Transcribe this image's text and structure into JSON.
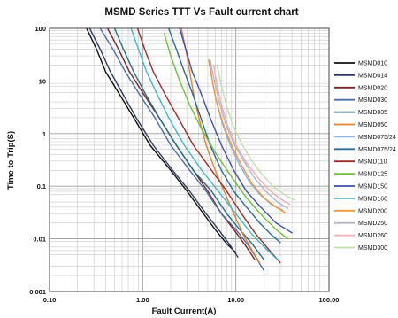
{
  "chart_data": {
    "type": "line",
    "title": "MSMD Series TTT Vs Fault current chart",
    "xlabel": "Fault Current(A)",
    "ylabel": "Time to Trip(S)",
    "x_scale": "log",
    "y_scale": "log",
    "xlim": [
      0.1,
      100
    ],
    "ylim": [
      0.001,
      100
    ],
    "x_ticks": [
      0.1,
      1,
      10,
      100
    ],
    "x_tick_labels": [
      "0.10",
      "1.00",
      "10.00",
      "100.00"
    ],
    "y_ticks": [
      0.001,
      0.01,
      0.1,
      1,
      10,
      100
    ],
    "y_tick_labels": [
      "0.001",
      "0.01",
      "0.1",
      "1",
      "10",
      "100"
    ],
    "grid": true,
    "legend_position": "right",
    "series": [
      {
        "name": "MSMD010",
        "color": "#111111",
        "points": [
          [
            0.25,
            100
          ],
          [
            0.32,
            40
          ],
          [
            0.4,
            15
          ],
          [
            0.55,
            6
          ],
          [
            0.8,
            2
          ],
          [
            1.2,
            0.6
          ],
          [
            2,
            0.2
          ],
          [
            3,
            0.08
          ],
          [
            4.5,
            0.03
          ],
          [
            6,
            0.015
          ],
          [
            8,
            0.008
          ],
          [
            10,
            0.0055
          ]
        ]
      },
      {
        "name": "MSMD014",
        "color": "#2f3a66",
        "points": [
          [
            0.27,
            100
          ],
          [
            0.35,
            40
          ],
          [
            0.45,
            15
          ],
          [
            0.6,
            6
          ],
          [
            0.85,
            2
          ],
          [
            1.3,
            0.6
          ],
          [
            2.1,
            0.2
          ],
          [
            3.2,
            0.08
          ],
          [
            4.8,
            0.03
          ],
          [
            6.5,
            0.015
          ],
          [
            8.5,
            0.008
          ],
          [
            10.5,
            0.0045
          ]
        ]
      },
      {
        "name": "MSMD020",
        "color": "#7a2424",
        "points": [
          [
            0.42,
            100
          ],
          [
            0.55,
            40
          ],
          [
            0.72,
            15
          ],
          [
            1,
            6
          ],
          [
            1.5,
            2
          ],
          [
            2.3,
            0.6
          ],
          [
            3.5,
            0.2
          ],
          [
            5,
            0.08
          ],
          [
            7,
            0.03
          ],
          [
            9.5,
            0.015
          ],
          [
            13,
            0.007
          ],
          [
            16,
            0.004
          ]
        ]
      },
      {
        "name": "MSMD030",
        "color": "#4c6ea8",
        "points": [
          [
            0.35,
            100
          ],
          [
            0.48,
            40
          ],
          [
            0.65,
            15
          ],
          [
            0.9,
            6
          ],
          [
            1.35,
            2
          ],
          [
            2,
            0.6
          ],
          [
            3.2,
            0.2
          ],
          [
            4.8,
            0.08
          ],
          [
            7,
            0.03
          ],
          [
            10,
            0.015
          ],
          [
            14,
            0.007
          ],
          [
            20,
            0.0025
          ]
        ]
      },
      {
        "name": "MSMD035",
        "color": "#1f6f7f",
        "points": [
          [
            0.5,
            100
          ],
          [
            0.62,
            40
          ],
          [
            0.8,
            15
          ],
          [
            1.05,
            6
          ],
          [
            1.5,
            2
          ],
          [
            2.3,
            0.6
          ],
          [
            3.5,
            0.2
          ],
          [
            5.5,
            0.08
          ],
          [
            8,
            0.03
          ],
          [
            11,
            0.015
          ],
          [
            15,
            0.008
          ],
          [
            20,
            0.004
          ]
        ]
      },
      {
        "name": "MSMD050",
        "color": "#e87f2e",
        "points": [
          [
            2.6,
            100
          ],
          [
            2.9,
            40
          ],
          [
            3.2,
            15
          ],
          [
            3.5,
            6
          ],
          [
            4,
            2
          ],
          [
            4.8,
            0.6
          ],
          [
            6,
            0.2
          ],
          [
            7.5,
            0.08
          ],
          [
            9.5,
            0.03
          ],
          [
            12,
            0.012
          ],
          [
            15,
            0.006
          ],
          [
            18,
            0.0035
          ]
        ]
      },
      {
        "name": "MSMD075/24",
        "color": "#8db6e6",
        "points": [
          [
            5.2,
            25
          ],
          [
            5.6,
            10
          ],
          [
            6.2,
            4
          ],
          [
            7.2,
            1.5
          ],
          [
            8.7,
            0.6
          ],
          [
            11,
            0.25
          ],
          [
            14,
            0.12
          ],
          [
            18,
            0.07
          ],
          [
            24,
            0.045
          ],
          [
            32,
            0.035
          ]
        ]
      },
      {
        "name": "MSMD075/24",
        "color": "#2e6b98",
        "points": [
          [
            1.9,
            100
          ],
          [
            2.3,
            40
          ],
          [
            2.8,
            15
          ],
          [
            3.4,
            6
          ],
          [
            4.2,
            2
          ],
          [
            5.3,
            0.6
          ],
          [
            7,
            0.2
          ],
          [
            9.5,
            0.08
          ],
          [
            13,
            0.04
          ],
          [
            18,
            0.02
          ],
          [
            24,
            0.012
          ],
          [
            30,
            0.0085
          ]
        ]
      },
      {
        "name": "MSMD110",
        "color": "#9c2d2d",
        "points": [
          [
            0.88,
            100
          ],
          [
            1.05,
            40
          ],
          [
            1.3,
            15
          ],
          [
            1.7,
            6
          ],
          [
            2.4,
            2
          ],
          [
            3.5,
            0.6
          ],
          [
            5.5,
            0.2
          ],
          [
            8,
            0.08
          ],
          [
            11.5,
            0.03
          ],
          [
            16,
            0.013
          ],
          [
            23,
            0.006
          ],
          [
            30,
            0.0035
          ]
        ]
      },
      {
        "name": "MSMD125",
        "color": "#6fbf3a",
        "points": [
          [
            1.7,
            80
          ],
          [
            2,
            30
          ],
          [
            2.5,
            10
          ],
          [
            3.2,
            3.5
          ],
          [
            4.3,
            1.2
          ],
          [
            6.2,
            0.4
          ],
          [
            9,
            0.15
          ],
          [
            13,
            0.06
          ],
          [
            19,
            0.028
          ],
          [
            27,
            0.015
          ],
          [
            36,
            0.01
          ]
        ]
      },
      {
        "name": "MSMD150",
        "color": "#3d4fb0",
        "points": [
          [
            2.5,
            100
          ],
          [
            2.9,
            40
          ],
          [
            3.4,
            15
          ],
          [
            4.2,
            6
          ],
          [
            5.3,
            2
          ],
          [
            7,
            0.6
          ],
          [
            9.5,
            0.2
          ],
          [
            13,
            0.08
          ],
          [
            18.5,
            0.04
          ],
          [
            27,
            0.02
          ],
          [
            40,
            0.013
          ]
        ]
      },
      {
        "name": "MSMD160",
        "color": "#3cb8c8",
        "points": [
          [
            0.75,
            100
          ],
          [
            0.9,
            40
          ],
          [
            1.1,
            15
          ],
          [
            1.4,
            6
          ],
          [
            1.9,
            2
          ],
          [
            2.8,
            0.6
          ],
          [
            4.3,
            0.2
          ],
          [
            6.5,
            0.08
          ],
          [
            10,
            0.03
          ],
          [
            15,
            0.012
          ],
          [
            22,
            0.006
          ],
          [
            28,
            0.004
          ]
        ]
      },
      {
        "name": "MSMD200",
        "color": "#f0973c",
        "points": [
          [
            5.1,
            25
          ],
          [
            5.6,
            10
          ],
          [
            6.2,
            4
          ],
          [
            7.3,
            1.5
          ],
          [
            9,
            0.6
          ],
          [
            11.5,
            0.25
          ],
          [
            15,
            0.11
          ],
          [
            20,
            0.06
          ],
          [
            27,
            0.04
          ],
          [
            34,
            0.031
          ]
        ]
      },
      {
        "name": "MSMD250",
        "color": "#b4b4c8",
        "points": [
          [
            5.3,
            25
          ],
          [
            5.9,
            10
          ],
          [
            6.6,
            4
          ],
          [
            7.8,
            1.5
          ],
          [
            9.7,
            0.6
          ],
          [
            12.5,
            0.28
          ],
          [
            16,
            0.14
          ],
          [
            21,
            0.08
          ],
          [
            28,
            0.05
          ],
          [
            36,
            0.038
          ]
        ]
      },
      {
        "name": "MSMD260",
        "color": "#f1adb3",
        "points": [
          [
            5.8,
            20
          ],
          [
            6.3,
            8
          ],
          [
            7,
            3.5
          ],
          [
            8.2,
            1.4
          ],
          [
            10,
            0.6
          ],
          [
            13,
            0.28
          ],
          [
            17,
            0.15
          ],
          [
            22,
            0.09
          ],
          [
            29,
            0.06
          ],
          [
            38,
            0.045
          ]
        ]
      },
      {
        "name": "MSMD300",
        "color": "#c2dfa8",
        "points": [
          [
            6.3,
            20
          ],
          [
            7,
            8
          ],
          [
            7.9,
            3.5
          ],
          [
            9.2,
            1.5
          ],
          [
            11.5,
            0.65
          ],
          [
            14.5,
            0.32
          ],
          [
            19,
            0.17
          ],
          [
            25,
            0.1
          ],
          [
            33,
            0.07
          ],
          [
            42,
            0.055
          ]
        ]
      }
    ]
  }
}
